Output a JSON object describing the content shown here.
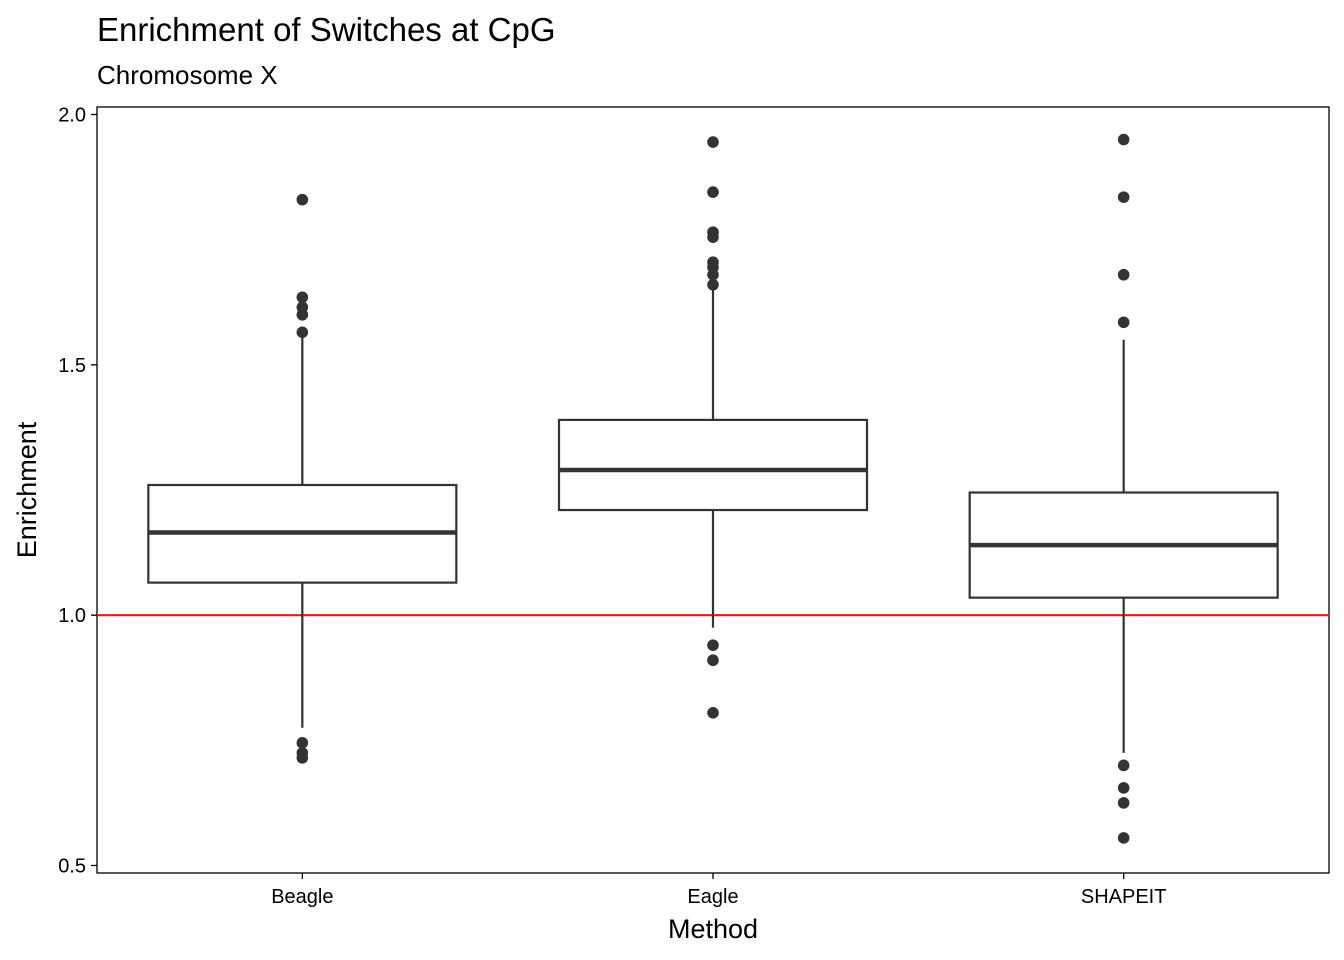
{
  "chart_data": {
    "type": "box",
    "title": "Enrichment of Switches at CpG",
    "subtitle": "Chromosome X",
    "xlabel": "Method",
    "ylabel": "Enrichment",
    "categories": [
      "Beagle",
      "Eagle",
      "SHAPEIT"
    ],
    "ylim": [
      0.485,
      2.015
    ],
    "yticks": [
      0.5,
      1.0,
      1.5,
      2.0
    ],
    "ytick_labels": [
      "0.5",
      "1.0",
      "1.5",
      "2.0"
    ],
    "reference_line": {
      "y": 1.0,
      "color": "#e31a1c"
    },
    "grid": false,
    "boxes": [
      {
        "category": "Beagle",
        "whisker_low": 0.775,
        "q1": 1.065,
        "median": 1.165,
        "q3": 1.26,
        "whisker_high": 1.555,
        "outliers": [
          1.83,
          1.635,
          1.615,
          1.6,
          1.565,
          0.745,
          0.725,
          0.715
        ]
      },
      {
        "category": "Eagle",
        "whisker_low": 0.975,
        "q1": 1.21,
        "median": 1.29,
        "q3": 1.39,
        "whisker_high": 1.65,
        "outliers": [
          1.945,
          1.845,
          1.765,
          1.755,
          1.705,
          1.695,
          1.68,
          1.66,
          0.94,
          0.91,
          0.805
        ]
      },
      {
        "category": "SHAPEIT",
        "whisker_low": 0.725,
        "q1": 1.035,
        "median": 1.14,
        "q3": 1.245,
        "whisker_high": 1.55,
        "outliers": [
          1.95,
          1.835,
          1.68,
          1.585,
          0.7,
          0.655,
          0.625,
          0.555
        ]
      }
    ]
  }
}
